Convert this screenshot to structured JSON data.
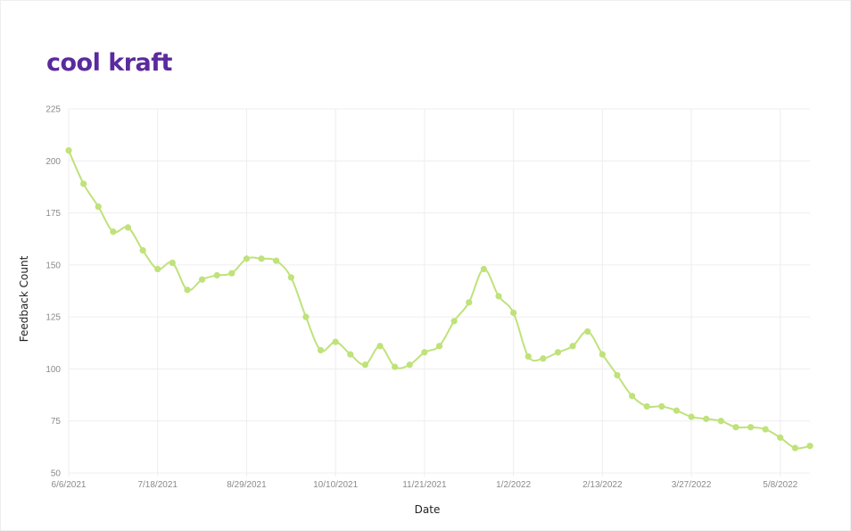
{
  "brand": {
    "name": "cool kraft"
  },
  "colors": {
    "brand": "#5b2a9c",
    "line": "#bfe27a",
    "grid": "#f0ecf0"
  },
  "chart_data": {
    "type": "line",
    "title": "",
    "xlabel": "Date",
    "ylabel": "Feedback Count",
    "ylim": [
      50,
      225
    ],
    "yticks": [
      50,
      75,
      100,
      125,
      150,
      175,
      200,
      225
    ],
    "xticks": [
      "6/6/2021",
      "7/18/2021",
      "8/29/2021",
      "10/10/2021",
      "11/21/2021",
      "1/2/2022",
      "2/13/2022",
      "3/27/2022",
      "5/8/2022"
    ],
    "x": [
      "2021-06-06",
      "2021-06-13",
      "2021-06-20",
      "2021-06-27",
      "2021-07-04",
      "2021-07-11",
      "2021-07-18",
      "2021-07-25",
      "2021-08-01",
      "2021-08-08",
      "2021-08-15",
      "2021-08-22",
      "2021-08-29",
      "2021-09-05",
      "2021-09-12",
      "2021-09-19",
      "2021-09-26",
      "2021-10-03",
      "2021-10-10",
      "2021-10-17",
      "2021-10-24",
      "2021-10-31",
      "2021-11-07",
      "2021-11-14",
      "2021-11-21",
      "2021-11-28",
      "2021-12-05",
      "2021-12-12",
      "2021-12-19",
      "2021-12-26",
      "2022-01-02",
      "2022-01-09",
      "2022-01-16",
      "2022-01-23",
      "2022-01-30",
      "2022-02-06",
      "2022-02-13",
      "2022-02-20",
      "2022-02-27",
      "2022-03-06",
      "2022-03-13",
      "2022-03-20",
      "2022-03-27",
      "2022-04-03",
      "2022-04-10",
      "2022-04-17",
      "2022-04-24",
      "2022-05-01",
      "2022-05-08",
      "2022-05-15",
      "2022-05-22"
    ],
    "series": [
      {
        "values": [
          205,
          189,
          178,
          166,
          168,
          157,
          148,
          151,
          138,
          143,
          145,
          146,
          153,
          153,
          152,
          144,
          125,
          109,
          113,
          107,
          102,
          111,
          101,
          102,
          108,
          111,
          123,
          132,
          148,
          135,
          127,
          106,
          105,
          108,
          111,
          118,
          107,
          97,
          87,
          82,
          82,
          80,
          77,
          76,
          75,
          72,
          72,
          71,
          67,
          62,
          63
        ]
      }
    ]
  }
}
